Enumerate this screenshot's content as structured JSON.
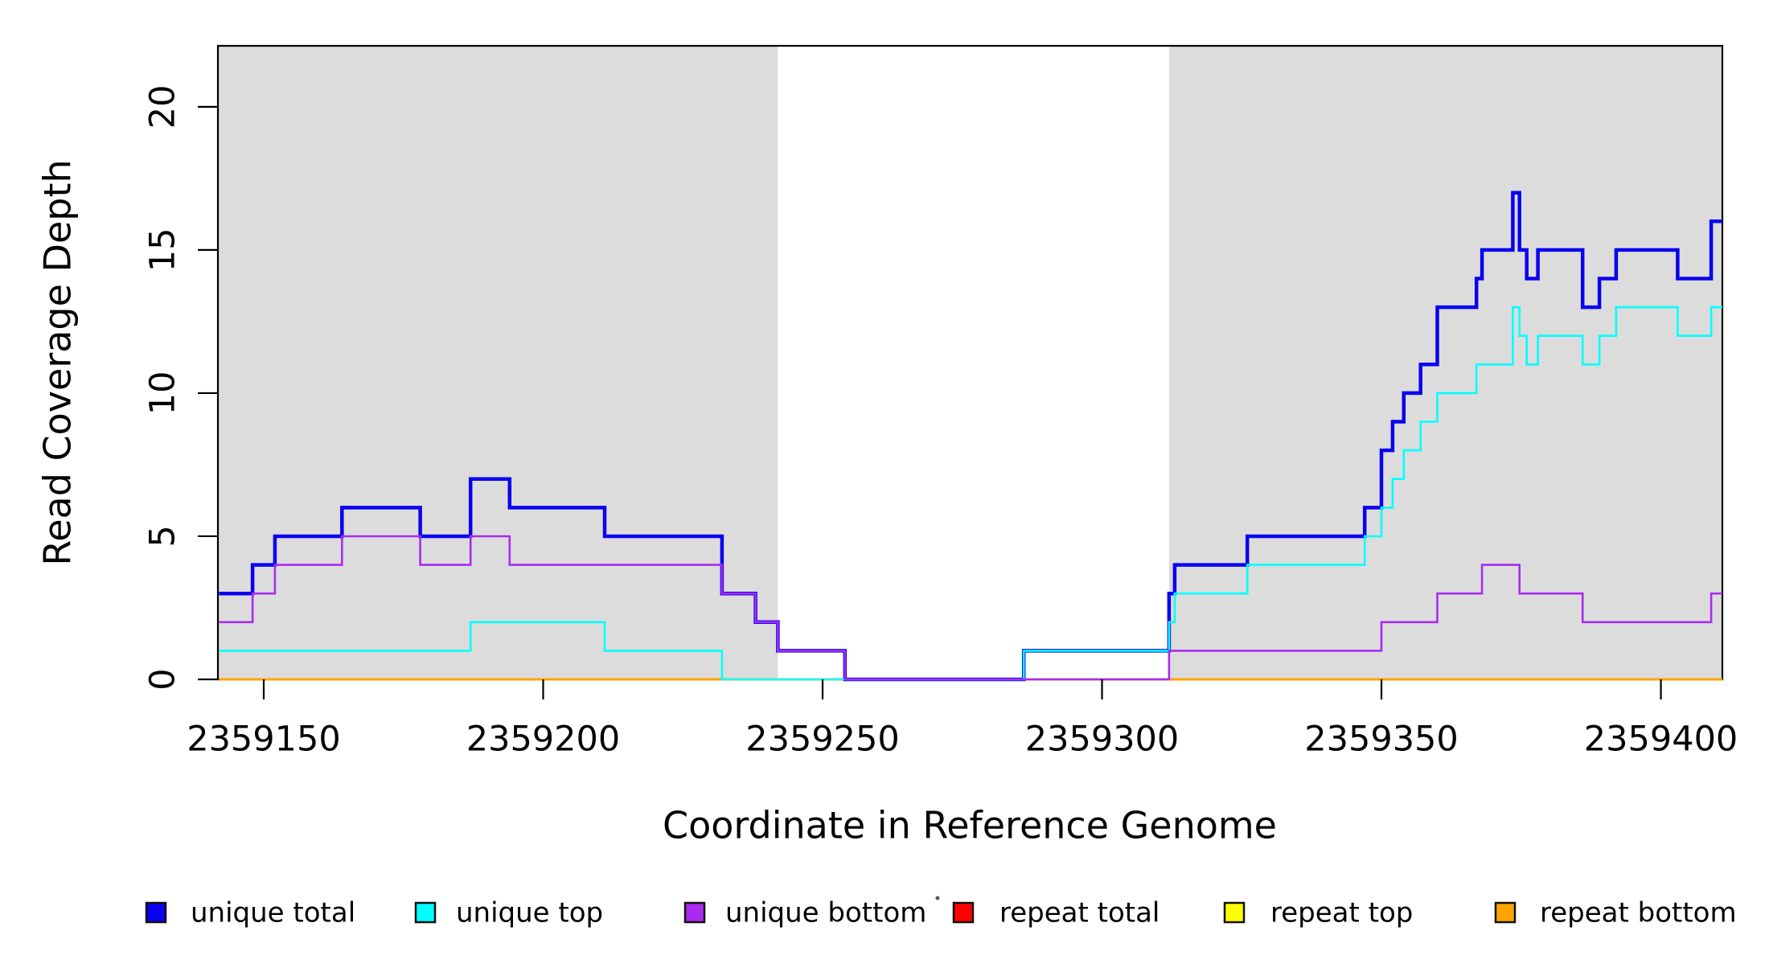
{
  "chart_data": {
    "type": "line",
    "subtype": "step-coverage-plot",
    "title": "",
    "xlabel": "Coordinate in Reference Genome",
    "ylabel": "Read Coverage Depth",
    "xlim": [
      2359141.8,
      2359411.0
    ],
    "ylim": [
      0,
      22.13
    ],
    "grid": false,
    "xticks": [
      2359150,
      2359200,
      2359250,
      2359300,
      2359350,
      2359400
    ],
    "yticks": [
      0,
      5,
      10,
      15,
      20
    ],
    "band_color": "#DCDCDC",
    "shaded_regions": [
      {
        "name": "left-unique-region",
        "x0": 2359141.8,
        "x1": 2359242
      },
      {
        "name": "right-unique-region",
        "x0": 2359312,
        "x1": 2359411
      }
    ],
    "series": [
      {
        "name": "repeat total",
        "color": "#FF0000",
        "width": 2.5,
        "steps": [
          [
            2359142,
            0
          ]
        ]
      },
      {
        "name": "repeat top",
        "color": "#FFFF00",
        "width": 2.5,
        "steps": [
          [
            2359142,
            0
          ]
        ]
      },
      {
        "name": "repeat bottom",
        "color": "#FFA500",
        "width": 3,
        "steps": [
          [
            2359142,
            0
          ]
        ]
      },
      {
        "name": "unique total",
        "color": "#0A00F0",
        "width": 4.5,
        "steps": [
          [
            2359142,
            3
          ],
          [
            2359148,
            4
          ],
          [
            2359152,
            5
          ],
          [
            2359164,
            6
          ],
          [
            2359178,
            5
          ],
          [
            2359187,
            7
          ],
          [
            2359194,
            6
          ],
          [
            2359211,
            5
          ],
          [
            2359232,
            3
          ],
          [
            2359238,
            2
          ],
          [
            2359242,
            1
          ],
          [
            2359254,
            0
          ],
          [
            2359286,
            1
          ],
          [
            2359312,
            3
          ],
          [
            2359313,
            4
          ],
          [
            2359326,
            5
          ],
          [
            2359347,
            6
          ],
          [
            2359350,
            8
          ],
          [
            2359352,
            9
          ],
          [
            2359354,
            10
          ],
          [
            2359357,
            11
          ],
          [
            2359360,
            13
          ],
          [
            2359367,
            14
          ],
          [
            2359368,
            15
          ],
          [
            2359373.5,
            17
          ],
          [
            2359374.7,
            15
          ],
          [
            2359376,
            14
          ],
          [
            2359378,
            15
          ],
          [
            2359386,
            13
          ],
          [
            2359389,
            14
          ],
          [
            2359392,
            15
          ],
          [
            2359403,
            14
          ],
          [
            2359409,
            16
          ]
        ]
      },
      {
        "name": "unique top",
        "color": "#00FFFF",
        "width": 2.6,
        "steps": [
          [
            2359142,
            1
          ],
          [
            2359187,
            2
          ],
          [
            2359211,
            1
          ],
          [
            2359232,
            0
          ],
          [
            2359286,
            1
          ],
          [
            2359312,
            2
          ],
          [
            2359313,
            3
          ],
          [
            2359326,
            4
          ],
          [
            2359347,
            5
          ],
          [
            2359350,
            6
          ],
          [
            2359352,
            7
          ],
          [
            2359354,
            8
          ],
          [
            2359357,
            9
          ],
          [
            2359360,
            10
          ],
          [
            2359367,
            11
          ],
          [
            2359373.5,
            13
          ],
          [
            2359374.7,
            12
          ],
          [
            2359376,
            11
          ],
          [
            2359378,
            12
          ],
          [
            2359386,
            11
          ],
          [
            2359389,
            12
          ],
          [
            2359392,
            13
          ],
          [
            2359403,
            12
          ],
          [
            2359409,
            13
          ]
        ]
      },
      {
        "name": "unique bottom",
        "color": "#A92BF0",
        "width": 2.6,
        "steps": [
          [
            2359142,
            2
          ],
          [
            2359148,
            3
          ],
          [
            2359152,
            4
          ],
          [
            2359164,
            5
          ],
          [
            2359178,
            4
          ],
          [
            2359187,
            5
          ],
          [
            2359194,
            4
          ],
          [
            2359232,
            3
          ],
          [
            2359238,
            2
          ],
          [
            2359242,
            1
          ],
          [
            2359254,
            0
          ],
          [
            2359312,
            1
          ],
          [
            2359350,
            2
          ],
          [
            2359360,
            3
          ],
          [
            2359368,
            4
          ],
          [
            2359374.7,
            3
          ],
          [
            2359386,
            2
          ],
          [
            2359409,
            3
          ]
        ]
      }
    ],
    "legend": {
      "position": "bottom",
      "entries": [
        {
          "label": "unique total",
          "color": "#0A00F0"
        },
        {
          "label": "unique top",
          "color": "#00FFFF"
        },
        {
          "label": "unique bottom",
          "color": "#A92BF0"
        },
        {
          "label": "repeat total",
          "color": "#FF0000"
        },
        {
          "label": "repeat top",
          "color": "#FFFF00"
        },
        {
          "label": "repeat bottom",
          "color": "#FFA500"
        }
      ]
    }
  }
}
